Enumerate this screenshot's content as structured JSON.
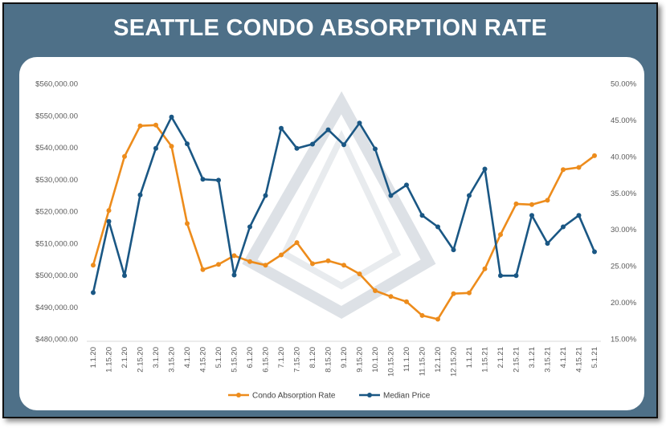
{
  "title": "SEATTLE CONDO ABSORPTION RATE",
  "colors": {
    "frame": "#4e7088",
    "absorption": "#ed8c1c",
    "price": "#1a5784",
    "watermark": "#d9dde2"
  },
  "chart_data": {
    "type": "line",
    "categories": [
      "1.1.20",
      "1.15.20",
      "2.1.20",
      "2.15.20",
      "3.1.20",
      "3.15.20",
      "4.1.20",
      "4.15.20",
      "5.1.20",
      "5.15.20",
      "6.1.20",
      "6.15.20",
      "7.1.20",
      "7.15.20",
      "8.1.20",
      "8.15.20",
      "9.1.20",
      "9.15.20",
      "10.1.20",
      "10.15.20",
      "11.1.20",
      "11.15.20",
      "12.1.20",
      "12.15.20",
      "1.1.21",
      "1.15.21",
      "2.1.21",
      "2.15.21",
      "3.1.21",
      "3.15.21",
      "4.1.21",
      "4.15.21",
      "5.1.21"
    ],
    "y_left": {
      "min": 480000,
      "max": 560000,
      "step": 10000,
      "tick_labels": [
        "$480,000.00",
        "$490,000.00",
        "$500,000.00",
        "$510,000.00",
        "$520,000.00",
        "$530,000.00",
        "$540,000.00",
        "$550,000.00",
        "$560,000.00"
      ]
    },
    "y_right": {
      "min": 15,
      "max": 50,
      "step": 5,
      "tick_labels": [
        "15.00%",
        "20.00%",
        "25.00%",
        "30.00%",
        "35.00%",
        "40.00%",
        "45.00%",
        "50.00%"
      ]
    },
    "grid": false,
    "legend_position": "bottom",
    "series": [
      {
        "name": "Condo Absorption Rate",
        "axis": "right",
        "color": "#ed8c1c",
        "values": [
          25.1,
          32.6,
          40.0,
          44.2,
          44.3,
          41.4,
          30.8,
          24.5,
          25.2,
          26.4,
          25.6,
          25.1,
          26.5,
          28.2,
          25.3,
          25.7,
          25.1,
          23.9,
          21.6,
          20.8,
          20.1,
          18.2,
          17.7,
          21.2,
          21.3,
          24.6,
          29.3,
          33.5,
          33.4,
          34.0,
          38.2,
          38.5,
          40.1
        ]
      },
      {
        "name": "Median Price",
        "axis": "left",
        "color": "#1a5784",
        "values": [
          494500,
          516800,
          499800,
          525100,
          539700,
          549500,
          541100,
          530000,
          529700,
          500000,
          515100,
          524900,
          546000,
          539700,
          541000,
          545500,
          540800,
          547600,
          539500,
          524900,
          528200,
          518700,
          515100,
          507900,
          524900,
          533200,
          499800,
          499800,
          518700,
          509900,
          515100,
          518700,
          507300
        ]
      }
    ]
  }
}
